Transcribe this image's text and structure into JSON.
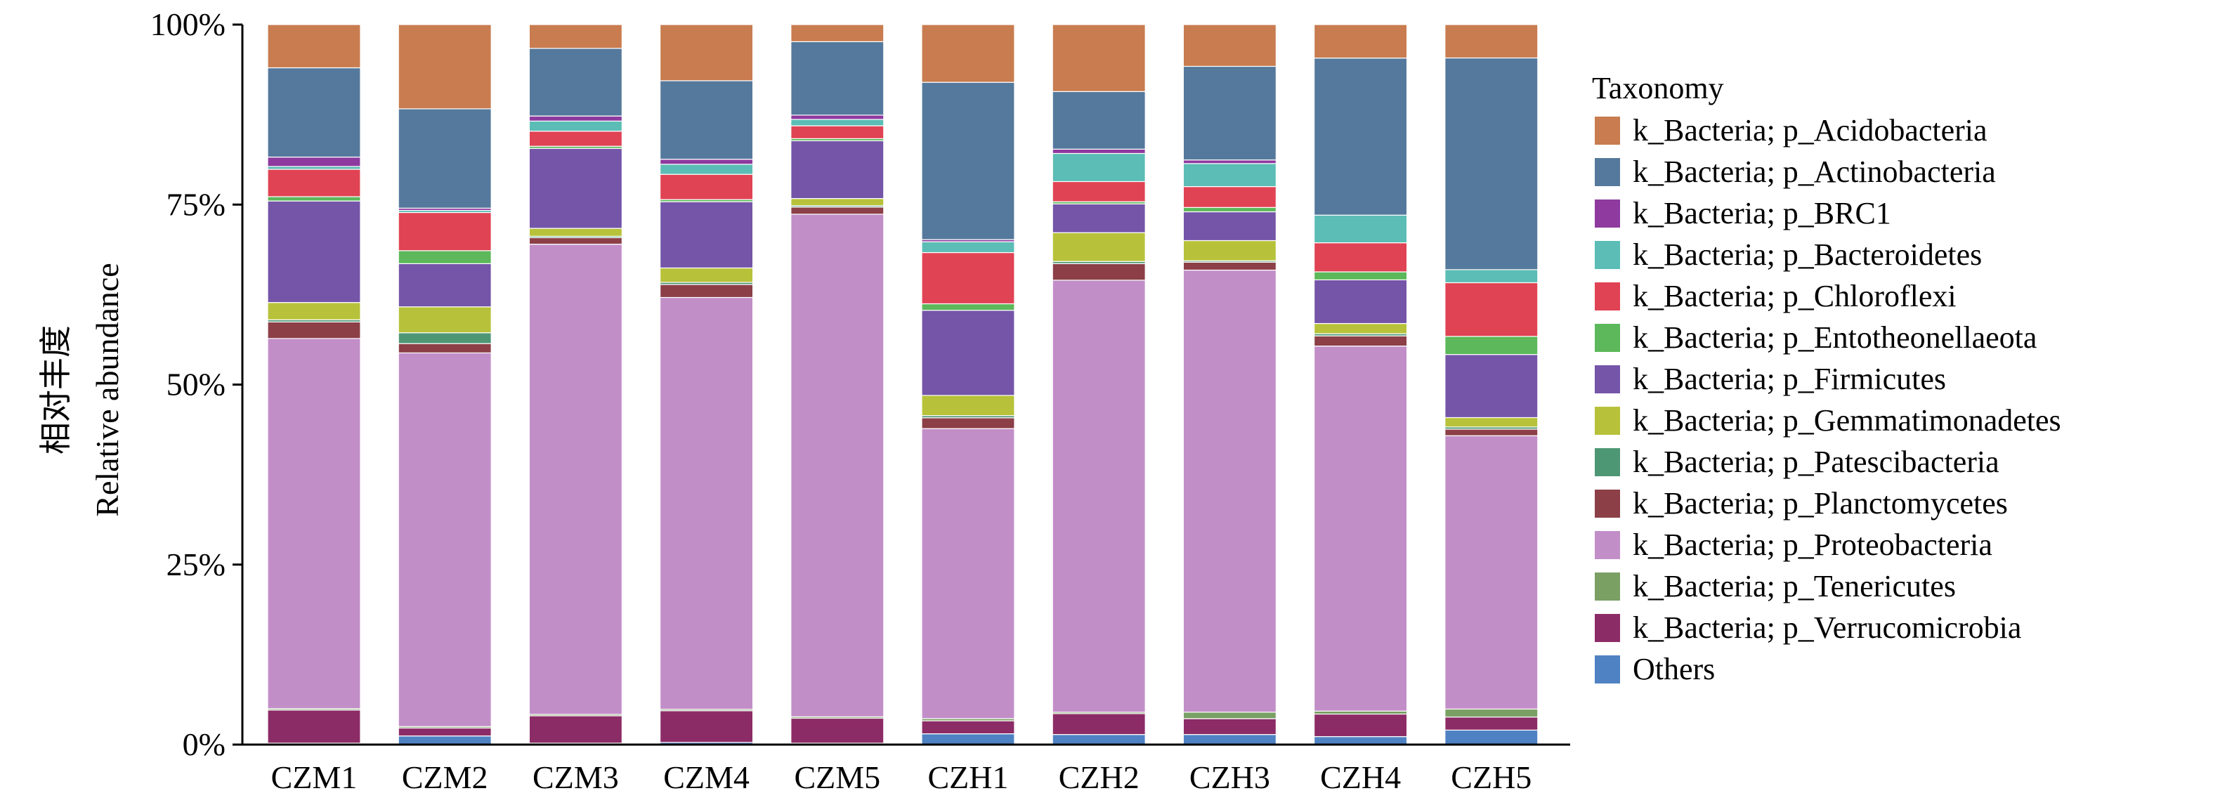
{
  "chart_data": {
    "type": "bar",
    "stacked": true,
    "ylabel_cn": "相对丰度",
    "ylabel": "Relative abundance",
    "xlabel": "",
    "ylim": [
      0,
      100
    ],
    "yticks": [
      "0%",
      "25%",
      "50%",
      "75%",
      "100%"
    ],
    "categories": [
      "CZM1",
      "CZM2",
      "CZM3",
      "CZM4",
      "CZM5",
      "CZH1",
      "CZH2",
      "CZH3",
      "CZH4",
      "CZH5"
    ],
    "legend_title": "Taxonomy",
    "legend_position": "right",
    "series": [
      {
        "name": "k_Bacteria; p_Acidobacteria",
        "color": "#C87C4F",
        "values": [
          6.0,
          11.7,
          3.3,
          7.8,
          2.4,
          8.0,
          9.3,
          5.8,
          4.6,
          4.6
        ]
      },
      {
        "name": "k_Bacteria; p_Actinobacteria",
        "color": "#55799C",
        "values": [
          12.4,
          13.8,
          9.4,
          10.9,
          10.3,
          21.8,
          8.0,
          13.0,
          21.6,
          29.2
        ]
      },
      {
        "name": "k_Bacteria; p_BRC1",
        "color": "#8E3A9F",
        "values": [
          1.3,
          0.3,
          0.7,
          0.7,
          0.6,
          0.3,
          0.6,
          0.5,
          0.0,
          0.0
        ]
      },
      {
        "name": "k_Bacteria; p_Bacteroidetes",
        "color": "#5BBDB5",
        "values": [
          0.4,
          0.3,
          1.4,
          1.4,
          0.9,
          1.5,
          3.9,
          3.2,
          3.8,
          1.8
        ]
      },
      {
        "name": "k_Bacteria; p_Chloroflexi",
        "color": "#E04353",
        "values": [
          3.8,
          5.3,
          2.1,
          3.5,
          1.8,
          7.1,
          2.8,
          2.9,
          4.0,
          7.4
        ]
      },
      {
        "name": "k_Bacteria; p_Entotheonellaeota",
        "color": "#5CB85A",
        "values": [
          0.6,
          1.8,
          0.3,
          0.3,
          0.3,
          0.9,
          0.3,
          0.6,
          1.1,
          2.5
        ]
      },
      {
        "name": "k_Bacteria; p_Firmicutes",
        "color": "#7455A8",
        "values": [
          14.1,
          6.0,
          11.1,
          9.2,
          8.1,
          11.8,
          4.0,
          4.0,
          6.0,
          8.7
        ]
      },
      {
        "name": "k_Bacteria; p_Gemmatimonadetes",
        "color": "#B7C23A",
        "values": [
          2.4,
          3.6,
          1.1,
          2.0,
          1.0,
          2.8,
          4.0,
          2.8,
          1.4,
          1.3
        ]
      },
      {
        "name": "k_Bacteria; p_Patescibacteria",
        "color": "#4E9775",
        "values": [
          0.3,
          1.5,
          0.2,
          0.3,
          0.2,
          0.3,
          0.3,
          0.2,
          0.3,
          0.3
        ]
      },
      {
        "name": "k_Bacteria; p_Planctomycetes",
        "color": "#8C3F47",
        "values": [
          2.3,
          1.3,
          0.9,
          1.8,
          1.0,
          1.5,
          2.3,
          1.1,
          1.4,
          0.9
        ]
      },
      {
        "name": "k_Bacteria; p_Proteobacteria",
        "color": "#C28EC8",
        "values": [
          51.4,
          51.9,
          65.3,
          57.2,
          70.5,
          40.2,
          60.0,
          61.4,
          50.2,
          37.7
        ]
      },
      {
        "name": "k_Bacteria; p_Tenericutes",
        "color": "#7AA064",
        "values": [
          0.2,
          0.2,
          0.2,
          0.2,
          0.2,
          0.3,
          0.2,
          0.9,
          0.4,
          1.1
        ]
      },
      {
        "name": "k_Bacteria; p_Verrucomicrobia",
        "color": "#8C2C66",
        "values": [
          4.6,
          1.1,
          3.8,
          4.4,
          3.5,
          1.8,
          2.9,
          2.2,
          3.1,
          1.8
        ]
      },
      {
        "name": "Others",
        "color": "#4F82C3",
        "values": [
          0.2,
          1.2,
          0.2,
          0.3,
          0.2,
          1.5,
          1.4,
          1.4,
          1.1,
          2.0
        ]
      }
    ]
  }
}
